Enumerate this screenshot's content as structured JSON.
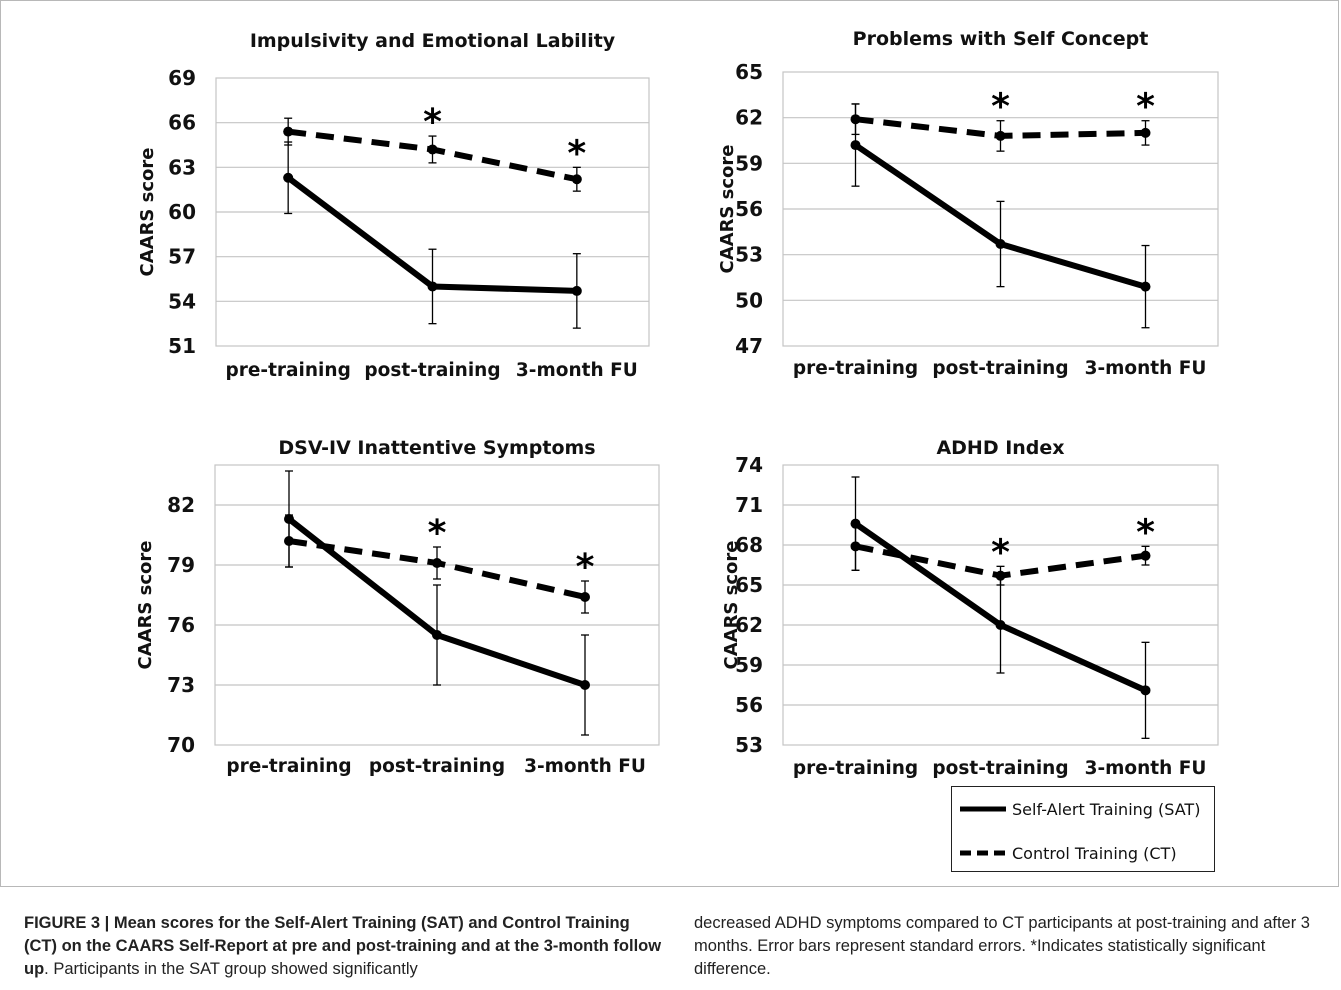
{
  "chart_data": [
    {
      "type": "line",
      "title": "Impulsivity and Emotional Lability",
      "ylabel": "CAARS score",
      "xlabel": "",
      "categories": [
        "pre-training",
        "post-training",
        "3-month FU"
      ],
      "yticks": [
        51,
        54,
        57,
        60,
        63,
        66,
        69
      ],
      "ylim": [
        51,
        69
      ],
      "grid": true,
      "series": [
        {
          "name": "Self-Alert Training (SAT)",
          "style": "solid",
          "values": [
            62.3,
            55.0,
            54.7
          ],
          "err": [
            2.4,
            2.5,
            2.5
          ]
        },
        {
          "name": "Control Training (CT)",
          "style": "dashed",
          "values": [
            65.4,
            64.2,
            62.2
          ],
          "err": [
            0.9,
            0.9,
            0.8
          ]
        }
      ],
      "annotations": [
        {
          "category": "post-training",
          "text": "*"
        },
        {
          "category": "3-month FU",
          "text": "*"
        }
      ]
    },
    {
      "type": "line",
      "title": "Problems with Self Concept",
      "ylabel": "CAARS score",
      "xlabel": "",
      "categories": [
        "pre-training",
        "post-training",
        "3-month FU"
      ],
      "yticks": [
        47,
        50,
        53,
        56,
        59,
        62,
        65
      ],
      "ylim": [
        47,
        65
      ],
      "grid": true,
      "series": [
        {
          "name": "Self-Alert Training (SAT)",
          "style": "solid",
          "values": [
            60.2,
            53.7,
            50.9
          ],
          "err": [
            2.7,
            2.8,
            2.7
          ]
        },
        {
          "name": "Control Training (CT)",
          "style": "dashed",
          "values": [
            61.9,
            60.8,
            61.0
          ],
          "err": [
            1.0,
            1.0,
            0.8
          ]
        }
      ],
      "annotations": [
        {
          "category": "post-training",
          "text": "*"
        },
        {
          "category": "3-month FU",
          "text": "*"
        }
      ]
    },
    {
      "type": "line",
      "title": "DSV-IV Inattentive Symptoms",
      "ylabel": "CAARS score",
      "xlabel": "",
      "categories": [
        "pre-training",
        "post-training",
        "3-month FU"
      ],
      "yticks": [
        70,
        73,
        76,
        79,
        82
      ],
      "ylim": [
        70,
        84
      ],
      "grid": true,
      "series": [
        {
          "name": "Self-Alert Training (SAT)",
          "style": "solid",
          "values": [
            81.3,
            75.5,
            73.0
          ],
          "err": [
            2.4,
            2.5,
            2.5
          ]
        },
        {
          "name": "Control Training (CT)",
          "style": "dashed",
          "values": [
            80.2,
            79.1,
            77.4
          ],
          "err": [
            1.3,
            0.8,
            0.8
          ]
        }
      ],
      "annotations": [
        {
          "category": "post-training",
          "text": "*"
        },
        {
          "category": "3-month FU",
          "text": "*"
        }
      ]
    },
    {
      "type": "line",
      "title": "ADHD Index",
      "ylabel": "CAARS score",
      "xlabel": "",
      "categories": [
        "pre-training",
        "post-training",
        "3-month FU"
      ],
      "yticks": [
        53,
        56,
        59,
        62,
        65,
        68,
        71,
        74
      ],
      "ylim": [
        53,
        74
      ],
      "grid": true,
      "series": [
        {
          "name": "Self-Alert Training (SAT)",
          "style": "solid",
          "values": [
            69.6,
            62.0,
            57.1
          ],
          "err": [
            3.5,
            3.6,
            3.6
          ]
        },
        {
          "name": "Control Training (CT)",
          "style": "dashed",
          "values": [
            67.9,
            65.7,
            67.2
          ],
          "err": [
            1.8,
            0.7,
            0.7
          ]
        }
      ],
      "annotations": [
        {
          "category": "post-training",
          "text": "*"
        },
        {
          "category": "3-month FU",
          "text": "*"
        }
      ]
    }
  ],
  "legend": {
    "sat_label": "Self-Alert Training (SAT)",
    "ct_label": "Control Training (CT)"
  },
  "caption": {
    "bold": "FIGURE 3 | Mean scores for the Self-Alert Training (SAT) and Control Training (CT) on the CAARS Self-Report at pre and post-training and at the 3-month follow up",
    "left_rest": ". Participants in the SAT group showed significantly",
    "right": "decreased ADHD symptoms compared to CT participants at post-training and after 3 months. Error bars represent standard errors. *Indicates statistically significant difference."
  }
}
